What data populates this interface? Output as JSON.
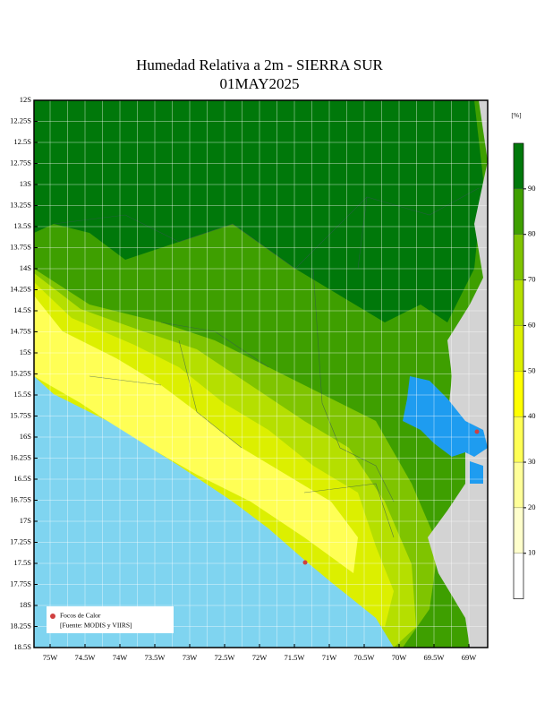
{
  "header": {
    "title": "Humedad Relativa a 2m - SIERRA SUR",
    "date": "01MAY2025"
  },
  "map": {
    "latitude_labels": [
      "12S",
      "12.25S",
      "12.5S",
      "12.75S",
      "13S",
      "13.25S",
      "13.5S",
      "13.75S",
      "14S",
      "14.25S",
      "14.5S",
      "14.75S",
      "15S",
      "15.25S",
      "15.5S",
      "15.75S",
      "16S",
      "16.25S",
      "16.5S",
      "16.75S",
      "17S",
      "17.25S",
      "17.5S",
      "17.75S",
      "18S",
      "18.25S",
      "18.5S"
    ],
    "longitude_labels": [
      "75W",
      "74.5W",
      "74W",
      "73.5W",
      "73W",
      "72.5W",
      "72W",
      "71.5W",
      "71W",
      "70.5W",
      "70W",
      "69.5W",
      "69W"
    ],
    "legend": {
      "symbol": "Focos de Calor",
      "source": "[Fuente: MODIS y VIIRS]"
    }
  },
  "colorbar": {
    "unit": "[%]",
    "lim": [
      0,
      100
    ],
    "ticks": [
      10,
      20,
      30,
      40,
      50,
      60,
      70,
      80,
      90
    ],
    "colors": [
      "#ffffff",
      "#ffffcc",
      "#ffff99",
      "#ffff55",
      "#ffff00",
      "#dcef00",
      "#b5df00",
      "#7fc400",
      "#3e9f00",
      "#00780a"
    ]
  }
}
